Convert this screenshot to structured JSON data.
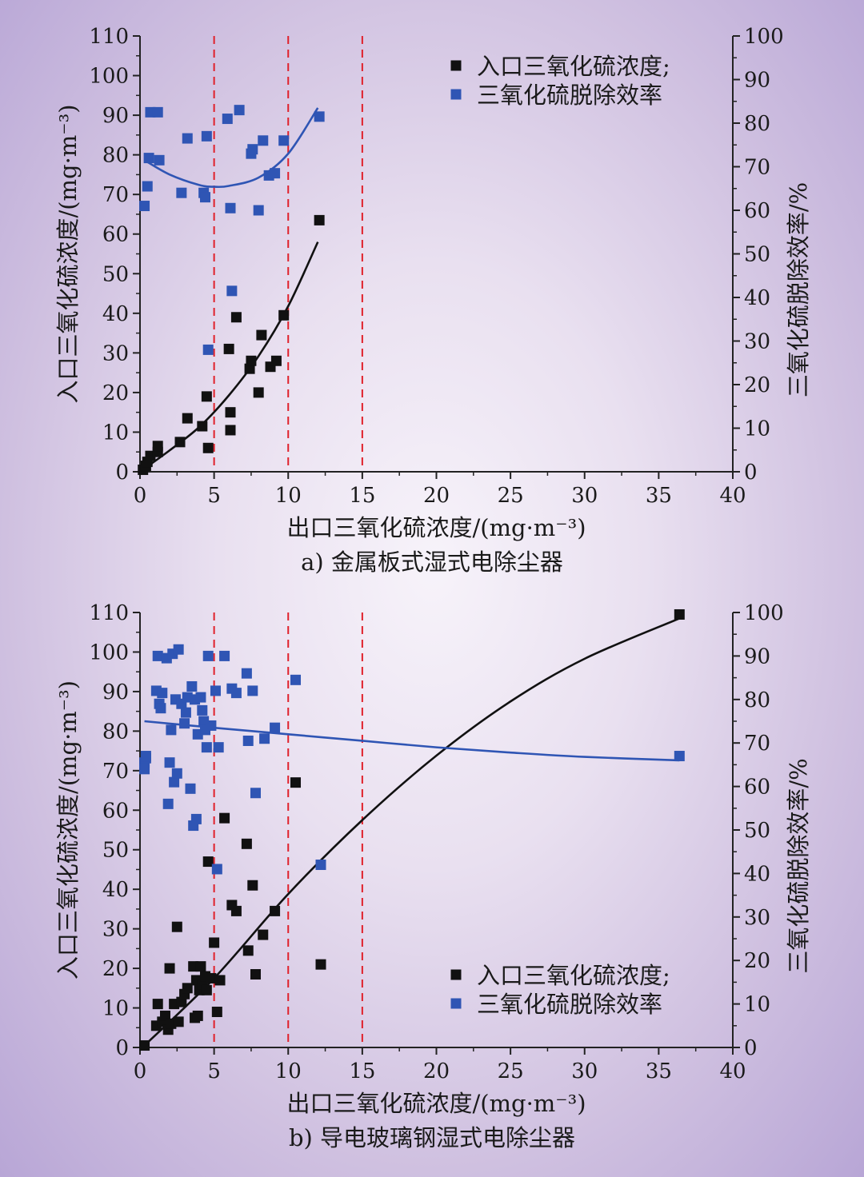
{
  "chart_data": [
    {
      "type": "scatter",
      "caption": "a) 金属板式湿式电除尘器",
      "xlabel": "出口三氧化硫浓度/(mg·m⁻³)",
      "ylabel": "入口三氧化硫浓度/(mg·m⁻³)",
      "y2label": "三氧化硫脱除效率/%",
      "xlim": [
        0,
        40
      ],
      "ylim": [
        0,
        110
      ],
      "y2lim": [
        0,
        100
      ],
      "xticks": [
        "0",
        "5",
        "10",
        "15",
        "20",
        "25",
        "30",
        "35",
        "40"
      ],
      "yticks": [
        "0",
        "10",
        "20",
        "30",
        "40",
        "50",
        "60",
        "70",
        "80",
        "90",
        "100",
        "110"
      ],
      "y2ticks": [
        "0",
        "10",
        "20",
        "30",
        "40",
        "50",
        "60",
        "70",
        "80",
        "90",
        "100"
      ],
      "vlines": [
        5,
        10,
        15
      ],
      "legend_position": "top-right",
      "legend": [
        {
          "label": "入口三氧化硫浓度;",
          "color": "#111111"
        },
        {
          "label": "三氧化硫脱除效率",
          "color": "#2f55b4"
        }
      ],
      "series": [
        {
          "name": "入口三氧化硫浓度;",
          "axis": "left",
          "color": "#111111",
          "points": [
            [
              0.2,
              0.5
            ],
            [
              0.4,
              1.5
            ],
            [
              0.5,
              2.5
            ],
            [
              0.7,
              4
            ],
            [
              1.2,
              5
            ],
            [
              1.2,
              6.5
            ],
            [
              2.7,
              7.5
            ],
            [
              3.2,
              13.5
            ],
            [
              4.2,
              11.5
            ],
            [
              4.5,
              19
            ],
            [
              4.6,
              6
            ],
            [
              6.1,
              15
            ],
            [
              6.1,
              10.5
            ],
            [
              6.5,
              39
            ],
            [
              6,
              31
            ],
            [
              7.4,
              26
            ],
            [
              7.5,
              28
            ],
            [
              8,
              20
            ],
            [
              8.2,
              34.5
            ],
            [
              8.8,
              26.5
            ],
            [
              9.2,
              28
            ],
            [
              9.7,
              39.5
            ],
            [
              12.1,
              63.5
            ]
          ]
        },
        {
          "name": "三氧化硫脱除效率",
          "axis": "right",
          "color": "#2f55b4",
          "points": [
            [
              0.3,
              61
            ],
            [
              0.5,
              65.5
            ],
            [
              0.6,
              72
            ],
            [
              0.7,
              82.5
            ],
            [
              1.2,
              82.5
            ],
            [
              1.3,
              71.5
            ],
            [
              2.8,
              64
            ],
            [
              3.2,
              76.5
            ],
            [
              4.3,
              64
            ],
            [
              4.4,
              63
            ],
            [
              4.5,
              77
            ],
            [
              4.6,
              28
            ],
            [
              5.9,
              81
            ],
            [
              6.1,
              60.5
            ],
            [
              6.2,
              41.5
            ],
            [
              6.7,
              83
            ],
            [
              7.5,
              73
            ],
            [
              7.6,
              74
            ],
            [
              8,
              60
            ],
            [
              8.3,
              76
            ],
            [
              8.7,
              68
            ],
            [
              9.1,
              68.5
            ],
            [
              9.7,
              76
            ],
            [
              12.1,
              81.5
            ]
          ]
        }
      ],
      "fits": [
        {
          "series": "入口三氧化硫浓度;",
          "x_range": [
            0,
            12
          ],
          "points": [
            [
              0,
              0
            ],
            [
              2,
              5.4
            ],
            [
              4,
              11.3
            ],
            [
              6,
              19.3
            ],
            [
              8,
              29.2
            ],
            [
              10,
              41.8
            ],
            [
              12,
              58
            ]
          ]
        },
        {
          "series": "三氧化硫脱除效率",
          "x_range": [
            0.3,
            12
          ],
          "points": [
            [
              0.3,
              71.5
            ],
            [
              2,
              68.2
            ],
            [
              4,
              65.8
            ],
            [
              5,
              65.4
            ],
            [
              6,
              65.6
            ],
            [
              8,
              67.5
            ],
            [
              10,
              73
            ],
            [
              12,
              83.5
            ]
          ]
        }
      ]
    },
    {
      "type": "scatter",
      "caption": "b) 导电玻璃钢湿式电除尘器",
      "xlabel": "出口三氧化硫浓度/(mg·m⁻³)",
      "ylabel": "入口三氧化硫浓度/(mg·m⁻³)",
      "y2label": "三氧化硫脱除效率/%",
      "xlim": [
        0,
        40
      ],
      "ylim": [
        0,
        110
      ],
      "y2lim": [
        0,
        100
      ],
      "xticks": [
        "0",
        "5",
        "10",
        "15",
        "20",
        "25",
        "30",
        "35",
        "40"
      ],
      "yticks": [
        "0",
        "10",
        "20",
        "30",
        "40",
        "50",
        "60",
        "70",
        "80",
        "90",
        "100",
        "110"
      ],
      "y2ticks": [
        "0",
        "10",
        "20",
        "30",
        "40",
        "50",
        "60",
        "70",
        "80",
        "90",
        "100"
      ],
      "vlines": [
        5,
        10,
        15
      ],
      "legend_position": "bottom-right",
      "legend": [
        {
          "label": "入口三氧化硫浓度;",
          "color": "#111111"
        },
        {
          "label": "三氧化硫脱除效率",
          "color": "#2f55b4"
        }
      ],
      "series": [
        {
          "name": "入口三氧化硫浓度;",
          "axis": "left",
          "color": "#111111",
          "points": [
            [
              0.3,
              0.5
            ],
            [
              1.1,
              5.5
            ],
            [
              1.2,
              11
            ],
            [
              1.5,
              6.5
            ],
            [
              1.7,
              8
            ],
            [
              1.9,
              4.5
            ],
            [
              2,
              20
            ],
            [
              2.1,
              6
            ],
            [
              2.3,
              11
            ],
            [
              2.5,
              30.5
            ],
            [
              2.6,
              6.5
            ],
            [
              2.8,
              11.5
            ],
            [
              3,
              13.5
            ],
            [
              3.2,
              15
            ],
            [
              3.6,
              20.5
            ],
            [
              3.7,
              7.5
            ],
            [
              3.8,
              17
            ],
            [
              3.9,
              8
            ],
            [
              4,
              14.5
            ],
            [
              4.1,
              20.5
            ],
            [
              4.2,
              16
            ],
            [
              4.4,
              18
            ],
            [
              4.5,
              14.5
            ],
            [
              4.6,
              47
            ],
            [
              4.8,
              17.5
            ],
            [
              5,
              26.5
            ],
            [
              5.2,
              9
            ],
            [
              5.4,
              17
            ],
            [
              5.7,
              58
            ],
            [
              6.2,
              36
            ],
            [
              6.5,
              34.5
            ],
            [
              7.2,
              51.5
            ],
            [
              7.3,
              24.5
            ],
            [
              7.6,
              41
            ],
            [
              7.8,
              18.5
            ],
            [
              8.3,
              28.5
            ],
            [
              9.1,
              34.5
            ],
            [
              10.5,
              67
            ],
            [
              12.2,
              21
            ],
            [
              36.4,
              109.5
            ]
          ]
        },
        {
          "name": "三氧化硫脱除效率",
          "axis": "right",
          "color": "#2f55b4",
          "points": [
            [
              0.3,
              64
            ],
            [
              0.3,
              65.5
            ],
            [
              0.4,
              66.5
            ],
            [
              0.4,
              67
            ],
            [
              1.1,
              82
            ],
            [
              1.2,
              90
            ],
            [
              1.3,
              79
            ],
            [
              1.4,
              78
            ],
            [
              1.5,
              81.5
            ],
            [
              1.8,
              89.5
            ],
            [
              1.9,
              56
            ],
            [
              2,
              65.5
            ],
            [
              2.1,
              73
            ],
            [
              2.2,
              90.5
            ],
            [
              2.3,
              61
            ],
            [
              2.4,
              80
            ],
            [
              2.5,
              63
            ],
            [
              2.6,
              91.5
            ],
            [
              2.8,
              79
            ],
            [
              3,
              74.5
            ],
            [
              3.1,
              77
            ],
            [
              3.2,
              80.5
            ],
            [
              3.4,
              59.5
            ],
            [
              3.5,
              83
            ],
            [
              3.6,
              51
            ],
            [
              3.7,
              80
            ],
            [
              3.8,
              52.5
            ],
            [
              3.9,
              72
            ],
            [
              4.1,
              80.5
            ],
            [
              4.2,
              77.5
            ],
            [
              4.3,
              75
            ],
            [
              4.4,
              73
            ],
            [
              4.5,
              69
            ],
            [
              4.6,
              90
            ],
            [
              4.8,
              74
            ],
            [
              5.1,
              82
            ],
            [
              5.2,
              41
            ],
            [
              5.3,
              69
            ],
            [
              5.7,
              90
            ],
            [
              6.2,
              82.5
            ],
            [
              6.5,
              81.5
            ],
            [
              7.2,
              86
            ],
            [
              7.3,
              70.5
            ],
            [
              7.6,
              82
            ],
            [
              7.8,
              58.5
            ],
            [
              8.4,
              71
            ],
            [
              9.1,
              73.5
            ],
            [
              10.5,
              84.5
            ],
            [
              12.2,
              42
            ],
            [
              36.4,
              67
            ]
          ]
        }
      ],
      "fits": [
        {
          "series": "入口三氧化硫浓度;",
          "x_range": [
            0.3,
            36.4
          ],
          "points": [
            [
              0.3,
              0.5
            ],
            [
              5,
              17.5
            ],
            [
              10,
              38.8
            ],
            [
              15,
              57.5
            ],
            [
              20,
              73.8
            ],
            [
              25,
              87.5
            ],
            [
              30,
              98.3
            ],
            [
              36.4,
              108.5
            ]
          ]
        },
        {
          "series": "三氧化硫脱除效率",
          "x_range": [
            0.3,
            36.4
          ],
          "points": [
            [
              0.3,
              75
            ],
            [
              5,
              73.5
            ],
            [
              10,
              72
            ],
            [
              15,
              70.5
            ],
            [
              20,
              69
            ],
            [
              25,
              67.8
            ],
            [
              30,
              66.8
            ],
            [
              36.4,
              66
            ]
          ]
        }
      ]
    }
  ]
}
